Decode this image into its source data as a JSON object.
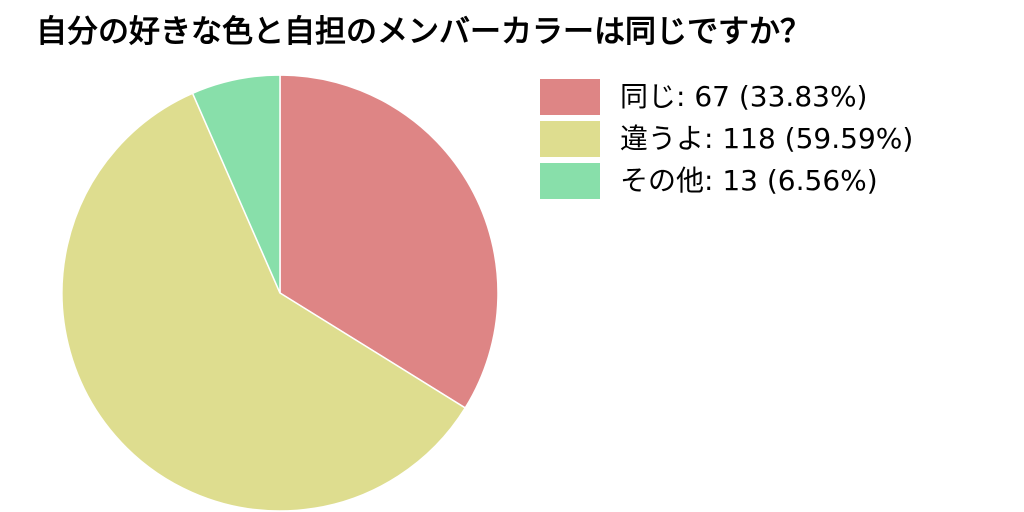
{
  "chart_data": {
    "type": "pie",
    "title": "自分の好きな色と自担のメンバーカラーは同じですか？",
    "start_angle": "top",
    "direction": "clockwise",
    "legend_position": "top-right",
    "slices": [
      {
        "label": "同じ",
        "value": 67,
        "percent": "33.83%",
        "legend_text": "同じ: 67 (33.83%)",
        "color": "#de8585"
      },
      {
        "label": "違うよ",
        "value": 118,
        "percent": "59.59%",
        "legend_text": "違うよ: 118 (59.59%)",
        "color": "#dedd8f"
      },
      {
        "label": "その他",
        "value": 13,
        "percent": "6.56%",
        "legend_text": "その他: 13 (6.56%)",
        "color": "#88dfaa"
      }
    ]
  }
}
